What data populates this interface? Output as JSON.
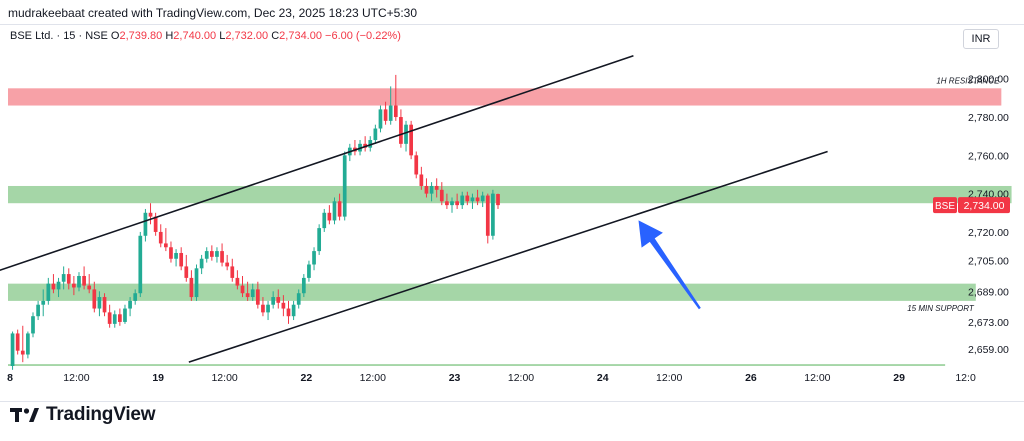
{
  "header": {
    "attribution": "mudrakeebaat created with TradingView.com, Dec 23, 2025 18:23 UTC+5:30"
  },
  "legend": {
    "symbol": "BSE Ltd. · 15 · NSE",
    "o_label": "O",
    "o_value": "2,739.80",
    "h_label": "H",
    "h_value": "2,740.00",
    "l_label": "L",
    "l_value": "2,732.00",
    "c_label": "C",
    "c_value": "2,734.00",
    "change": "−6.00 (−0.22%)"
  },
  "currency": "INR",
  "footer": {
    "brand": "TradingView"
  },
  "colors": {
    "up": "#22ab94",
    "down": "#f23645",
    "resistance_zone": "#f7a1a7",
    "support_zone": "#a5d6a7",
    "arrow": "#2962ff",
    "channel": "#131722"
  },
  "chart_data": {
    "type": "candlestick",
    "symbol": "BSE",
    "interval": "15",
    "exchange": "NSE",
    "ylim": [
      2650,
      2815
    ],
    "y_tick_labels": [
      {
        "value": 2800,
        "label": "2,800.00"
      },
      {
        "value": 2780,
        "label": "2,780.00"
      },
      {
        "value": 2760,
        "label": "2,760.00"
      },
      {
        "value": 2740,
        "label": "2,740.00"
      },
      {
        "value": 2720,
        "label": "2,720.00"
      },
      {
        "value": 2705,
        "label": "2,705.00"
      },
      {
        "value": 2689,
        "label": "2,689.00"
      },
      {
        "value": 2673,
        "label": "2,673.00"
      },
      {
        "value": 2659,
        "label": "2,659.00"
      }
    ],
    "x_range_bars": [
      -2,
      195
    ],
    "x_tick_labels": [
      {
        "bar": 0,
        "label": "8"
      },
      {
        "bar": 13,
        "label": "12:00"
      },
      {
        "bar": 29,
        "label": "19"
      },
      {
        "bar": 42,
        "label": "12:00"
      },
      {
        "bar": 58,
        "label": "22"
      },
      {
        "bar": 71,
        "label": "12:00"
      },
      {
        "bar": 87,
        "label": "23"
      },
      {
        "bar": 100,
        "label": "12:00"
      },
      {
        "bar": 116,
        "label": "24"
      },
      {
        "bar": 129,
        "label": "12:00"
      },
      {
        "bar": 145,
        "label": "26"
      },
      {
        "bar": 158,
        "label": "12:00"
      },
      {
        "bar": 174,
        "label": "29"
      },
      {
        "bar": 187,
        "label": "12:0"
      }
    ],
    "last_price": {
      "tag": "BSE",
      "value": 2734,
      "label": "2,734.00"
    },
    "candles": [
      [
        2650,
        2668,
        2648,
        2667
      ],
      [
        2667,
        2669,
        2656,
        2658
      ],
      [
        2658,
        2671,
        2652,
        2656
      ],
      [
        2656,
        2668,
        2654,
        2667
      ],
      [
        2667,
        2678,
        2665,
        2676
      ],
      [
        2676,
        2684,
        2674,
        2682
      ],
      [
        2682,
        2690,
        2676,
        2684
      ],
      [
        2684,
        2696,
        2682,
        2693
      ],
      [
        2693,
        2698,
        2688,
        2690
      ],
      [
        2690,
        2696,
        2686,
        2694
      ],
      [
        2694,
        2702,
        2690,
        2698
      ],
      [
        2698,
        2701,
        2690,
        2693
      ],
      [
        2693,
        2697,
        2687,
        2691
      ],
      [
        2691,
        2699,
        2689,
        2697
      ],
      [
        2697,
        2702,
        2690,
        2692
      ],
      [
        2692,
        2698,
        2688,
        2690
      ],
      [
        2690,
        2694,
        2678,
        2680
      ],
      [
        2680,
        2689,
        2676,
        2686
      ],
      [
        2686,
        2688,
        2676,
        2678
      ],
      [
        2678,
        2682,
        2670,
        2672
      ],
      [
        2672,
        2679,
        2670,
        2677
      ],
      [
        2677,
        2680,
        2671,
        2673
      ],
      [
        2673,
        2682,
        2672,
        2680
      ],
      [
        2680,
        2686,
        2676,
        2684
      ],
      [
        2684,
        2690,
        2682,
        2688
      ],
      [
        2688,
        2720,
        2686,
        2718
      ],
      [
        2718,
        2732,
        2715,
        2730
      ],
      [
        2730,
        2735,
        2724,
        2728
      ],
      [
        2728,
        2730,
        2718,
        2720
      ],
      [
        2720,
        2724,
        2712,
        2714
      ],
      [
        2714,
        2722,
        2710,
        2712
      ],
      [
        2712,
        2715,
        2704,
        2706
      ],
      [
        2706,
        2711,
        2702,
        2709
      ],
      [
        2709,
        2712,
        2700,
        2702
      ],
      [
        2702,
        2708,
        2694,
        2696
      ],
      [
        2696,
        2700,
        2684,
        2686
      ],
      [
        2686,
        2703,
        2684,
        2701
      ],
      [
        2701,
        2708,
        2698,
        2706
      ],
      [
        2706,
        2712,
        2704,
        2710
      ],
      [
        2710,
        2713,
        2705,
        2707
      ],
      [
        2707,
        2712,
        2704,
        2710
      ],
      [
        2710,
        2714,
        2702,
        2704
      ],
      [
        2704,
        2708,
        2700,
        2702
      ],
      [
        2702,
        2706,
        2694,
        2696
      ],
      [
        2696,
        2700,
        2690,
        2692
      ],
      [
        2692,
        2697,
        2686,
        2688
      ],
      [
        2688,
        2694,
        2684,
        2686
      ],
      [
        2686,
        2693,
        2684,
        2690
      ],
      [
        2690,
        2694,
        2680,
        2682
      ],
      [
        2682,
        2686,
        2676,
        2678
      ],
      [
        2678,
        2684,
        2674,
        2682
      ],
      [
        2682,
        2689,
        2680,
        2686
      ],
      [
        2686,
        2690,
        2680,
        2683
      ],
      [
        2683,
        2687,
        2676,
        2680
      ],
      [
        2680,
        2684,
        2672,
        2676
      ],
      [
        2676,
        2684,
        2674,
        2682
      ],
      [
        2682,
        2690,
        2680,
        2688
      ],
      [
        2688,
        2698,
        2686,
        2696
      ],
      [
        2696,
        2705,
        2694,
        2703
      ],
      [
        2703,
        2712,
        2700,
        2710
      ],
      [
        2710,
        2724,
        2708,
        2722
      ],
      [
        2722,
        2732,
        2720,
        2730
      ],
      [
        2730,
        2734,
        2724,
        2726
      ],
      [
        2726,
        2738,
        2724,
        2736
      ],
      [
        2736,
        2740,
        2726,
        2728
      ],
      [
        2728,
        2762,
        2726,
        2760
      ],
      [
        2760,
        2766,
        2757,
        2764
      ],
      [
        2764,
        2768,
        2760,
        2762
      ],
      [
        2762,
        2768,
        2760,
        2766
      ],
      [
        2766,
        2770,
        2762,
        2764
      ],
      [
        2764,
        2770,
        2762,
        2768
      ],
      [
        2768,
        2776,
        2766,
        2774
      ],
      [
        2774,
        2786,
        2772,
        2784
      ],
      [
        2784,
        2788,
        2776,
        2778
      ],
      [
        2778,
        2796,
        2776,
        2786
      ],
      [
        2786,
        2802,
        2778,
        2780
      ],
      [
        2780,
        2784,
        2764,
        2766
      ],
      [
        2766,
        2778,
        2762,
        2776
      ],
      [
        2776,
        2778,
        2758,
        2760
      ],
      [
        2760,
        2762,
        2748,
        2750
      ],
      [
        2750,
        2754,
        2742,
        2744
      ],
      [
        2744,
        2748,
        2738,
        2740
      ],
      [
        2740,
        2746,
        2736,
        2744
      ],
      [
        2744,
        2748,
        2738,
        2742
      ],
      [
        2742,
        2746,
        2734,
        2736
      ],
      [
        2736,
        2740,
        2732,
        2734
      ],
      [
        2734,
        2738,
        2730,
        2736
      ],
      [
        2736,
        2740,
        2732,
        2734
      ],
      [
        2734,
        2741,
        2732,
        2739
      ],
      [
        2739,
        2741,
        2734,
        2736
      ],
      [
        2736,
        2740,
        2732,
        2738
      ],
      [
        2738,
        2742,
        2734,
        2736
      ],
      [
        2736,
        2741,
        2733,
        2739
      ],
      [
        2739,
        2740,
        2714,
        2718
      ],
      [
        2718,
        2742,
        2716,
        2740
      ],
      [
        2739.8,
        2740,
        2732,
        2734
      ]
    ],
    "zones": [
      {
        "name": "resistance",
        "label": "1H RESISTANCE",
        "y0": 2786,
        "y1": 2795,
        "bar_from": -2,
        "bar_to": 194
      },
      {
        "name": "upper-support",
        "label": "",
        "y0": 2735,
        "y1": 2744,
        "bar_from": -2,
        "bar_to": 196
      },
      {
        "name": "lower-support",
        "label": "15 MIN SUPPORT",
        "y0": 2684,
        "y1": 2693,
        "bar_from": -2,
        "bar_to": 189
      },
      {
        "name": "bottom-band",
        "label": "",
        "y0": 2650,
        "y1": 2651,
        "bar_from": -2,
        "bar_to": 183
      }
    ],
    "trendlines": [
      {
        "name": "channel-upper",
        "x0": -2,
        "y0": 2700,
        "x1": 122,
        "y1": 2812
      },
      {
        "name": "channel-lower",
        "x0": 35,
        "y0": 2652,
        "x1": 160,
        "y1": 2762
      }
    ],
    "arrow": {
      "from_bar": 135,
      "from_y": 2680,
      "to_bar": 123,
      "to_y": 2726
    }
  }
}
